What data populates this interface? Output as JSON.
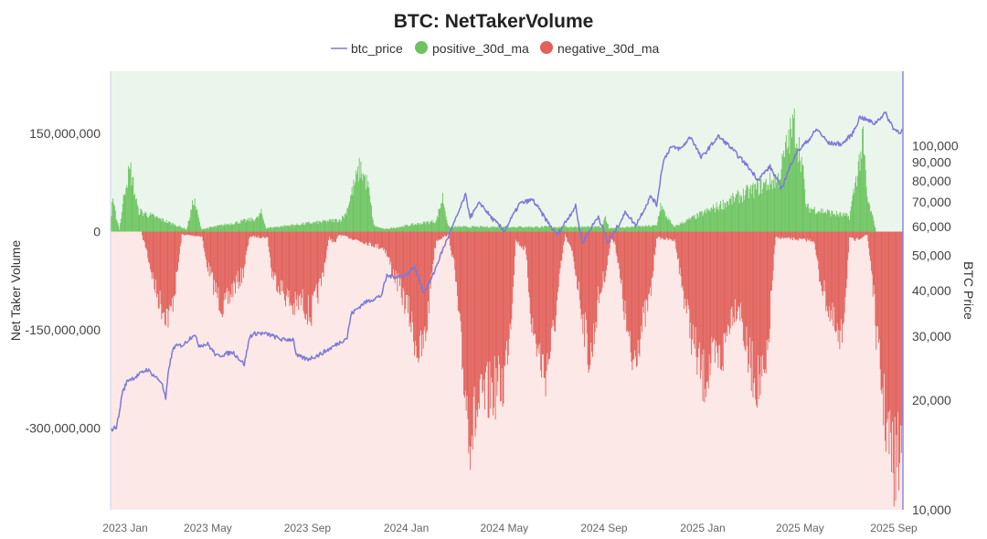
{
  "chart_data": {
    "type": "bar",
    "title": "BTC: NetTakerVolume",
    "legend_position": "top-center",
    "legend": [
      {
        "name": "btc_price",
        "symbol": "line",
        "color": "#7b79d8"
      },
      {
        "name": "positive_30d_ma",
        "symbol": "circle",
        "color": "#6cc45f"
      },
      {
        "name": "negative_30d_ma",
        "symbol": "circle",
        "color": "#e1605a"
      }
    ],
    "colors": {
      "positive_band": "#eaf6ec",
      "negative_band": "#fce8e6",
      "positive_bar": "#6cc45f",
      "negative_bar": "#e1605a",
      "price_line": "#7b79d8",
      "right_axis": "#8b89e0"
    },
    "xlabel": "",
    "x_ticks": [
      "2023 Jan",
      "2023 May",
      "2023 Sep",
      "2024 Jan",
      "2024 May",
      "2024 Sep",
      "2025 Jan",
      "2025 May",
      "2025 Sep"
    ],
    "x_range": [
      "2023-01-01",
      "2025-09-05"
    ],
    "y_left": {
      "label": "Net Taker Volume",
      "range": [
        -425000000,
        245000000
      ],
      "ticks": [
        150000000,
        0,
        -150000000,
        -300000000
      ],
      "tick_labels": [
        "150,000,000",
        "0",
        "-150,000,000",
        "-300,000,000"
      ]
    },
    "y_right": {
      "label": "BTC Price",
      "scale": "log",
      "range": [
        10000,
        160000
      ],
      "ticks": [
        10000,
        20000,
        30000,
        40000,
        50000,
        60000,
        70000,
        80000,
        90000,
        100000
      ],
      "tick_labels": [
        "10,000",
        "20,000",
        "30,000",
        "40,000",
        "50,000",
        "60,000",
        "70,000",
        "80,000",
        "90,000",
        "100,000"
      ]
    },
    "series": [
      {
        "name": "btc_price",
        "axis": "right",
        "points": [
          [
            "2023-01-01",
            16500
          ],
          [
            "2023-01-08",
            16900
          ],
          [
            "2023-01-12",
            18500
          ],
          [
            "2023-01-15",
            20800
          ],
          [
            "2023-01-22",
            22700
          ],
          [
            "2023-01-31",
            23100
          ],
          [
            "2023-02-15",
            24300
          ],
          [
            "2023-02-25",
            23200
          ],
          [
            "2023-03-05",
            22400
          ],
          [
            "2023-03-10",
            20100
          ],
          [
            "2023-03-14",
            24600
          ],
          [
            "2023-03-20",
            28000
          ],
          [
            "2023-04-01",
            28400
          ],
          [
            "2023-04-14",
            30400
          ],
          [
            "2023-04-20",
            28300
          ],
          [
            "2023-05-01",
            28500
          ],
          [
            "2023-05-12",
            26400
          ],
          [
            "2023-06-01",
            27100
          ],
          [
            "2023-06-15",
            25100
          ],
          [
            "2023-06-22",
            30000
          ],
          [
            "2023-07-01",
            30600
          ],
          [
            "2023-07-15",
            30300
          ],
          [
            "2023-08-01",
            29300
          ],
          [
            "2023-08-15",
            29400
          ],
          [
            "2023-08-18",
            26500
          ],
          [
            "2023-09-01",
            25900
          ],
          [
            "2023-09-15",
            26600
          ],
          [
            "2023-10-01",
            27900
          ],
          [
            "2023-10-20",
            29700
          ],
          [
            "2023-10-25",
            34500
          ],
          [
            "2023-11-10",
            37000
          ],
          [
            "2023-12-01",
            38700
          ],
          [
            "2023-12-08",
            43900
          ],
          [
            "2023-12-20",
            43600
          ],
          [
            "2024-01-01",
            44200
          ],
          [
            "2024-01-11",
            46500
          ],
          [
            "2024-01-23",
            39500
          ],
          [
            "2024-02-01",
            43000
          ],
          [
            "2024-02-15",
            51800
          ],
          [
            "2024-03-01",
            62000
          ],
          [
            "2024-03-14",
            73100
          ],
          [
            "2024-03-20",
            63700
          ],
          [
            "2024-04-01",
            69700
          ],
          [
            "2024-04-15",
            63400
          ],
          [
            "2024-05-01",
            58300
          ],
          [
            "2024-05-20",
            69300
          ],
          [
            "2024-06-05",
            71000
          ],
          [
            "2024-06-25",
            61000
          ],
          [
            "2024-07-05",
            56700
          ],
          [
            "2024-07-28",
            68200
          ],
          [
            "2024-08-05",
            54000
          ],
          [
            "2024-08-25",
            64000
          ],
          [
            "2024-09-06",
            53900
          ],
          [
            "2024-09-28",
            65800
          ],
          [
            "2024-10-10",
            60300
          ],
          [
            "2024-10-29",
            72700
          ],
          [
            "2024-11-05",
            68700
          ],
          [
            "2024-11-13",
            90400
          ],
          [
            "2024-11-22",
            98900
          ],
          [
            "2024-12-05",
            98000
          ],
          [
            "2024-12-17",
            106000
          ],
          [
            "2024-12-30",
            92500
          ],
          [
            "2025-01-20",
            106000
          ],
          [
            "2025-02-01",
            100600
          ],
          [
            "2025-02-25",
            88000
          ],
          [
            "2025-03-10",
            80700
          ],
          [
            "2025-03-25",
            87500
          ],
          [
            "2025-04-08",
            76300
          ],
          [
            "2025-04-25",
            94700
          ],
          [
            "2025-05-12",
            104000
          ],
          [
            "2025-05-22",
            111000
          ],
          [
            "2025-06-05",
            101500
          ],
          [
            "2025-06-22",
            101000
          ],
          [
            "2025-07-05",
            108000
          ],
          [
            "2025-07-14",
            120000
          ],
          [
            "2025-08-01",
            115000
          ],
          [
            "2025-08-14",
            123000
          ],
          [
            "2025-08-25",
            111000
          ],
          [
            "2025-09-01",
            109000
          ],
          [
            "2025-09-05",
            110500
          ]
        ]
      },
      {
        "name": "positive_30d_ma",
        "axis": "left",
        "peak_points": [
          [
            "2023-01-01",
            0
          ],
          [
            "2023-01-03",
            52000000
          ],
          [
            "2023-01-12",
            4000000
          ],
          [
            "2023-01-20",
            85000000
          ],
          [
            "2023-01-26",
            102000000
          ],
          [
            "2023-02-04",
            35000000
          ],
          [
            "2023-04-05",
            4000000
          ],
          [
            "2023-04-14",
            55000000
          ],
          [
            "2023-04-23",
            4000000
          ],
          [
            "2023-07-01",
            22000000
          ],
          [
            "2023-07-06",
            32000000
          ],
          [
            "2023-07-12",
            6000000
          ],
          [
            "2023-10-12",
            20000000
          ],
          [
            "2023-10-18",
            30000000
          ],
          [
            "2023-10-25",
            62000000
          ],
          [
            "2023-11-05",
            108000000
          ],
          [
            "2023-11-15",
            75000000
          ],
          [
            "2023-11-22",
            10000000
          ],
          [
            "2023-12-05",
            4000000
          ],
          [
            "2024-02-07",
            18000000
          ],
          [
            "2024-02-15",
            58000000
          ],
          [
            "2024-02-22",
            8000000
          ],
          [
            "2024-08-30",
            8000000
          ],
          [
            "2024-09-03",
            25000000
          ],
          [
            "2024-09-07",
            6000000
          ],
          [
            "2024-11-05",
            10000000
          ],
          [
            "2024-11-10",
            45000000
          ],
          [
            "2024-11-15",
            30000000
          ],
          [
            "2024-11-26",
            8000000
          ],
          [
            "2025-04-05",
            90000000
          ],
          [
            "2025-04-16",
            150000000
          ],
          [
            "2025-04-24",
            180000000
          ],
          [
            "2025-05-03",
            120000000
          ],
          [
            "2025-05-09",
            40000000
          ],
          [
            "2025-07-01",
            25000000
          ],
          [
            "2025-07-12",
            110000000
          ],
          [
            "2025-07-18",
            150000000
          ],
          [
            "2025-07-23",
            55000000
          ],
          [
            "2025-08-03",
            3000000
          ]
        ]
      },
      {
        "name": "negative_30d_ma",
        "axis": "left",
        "trough_points": [
          [
            "2023-02-08",
            -4000000
          ],
          [
            "2023-02-14",
            -28000000
          ],
          [
            "2023-02-25",
            -95000000
          ],
          [
            "2023-03-05",
            -125000000
          ],
          [
            "2023-03-15",
            -145000000
          ],
          [
            "2023-03-24",
            -75000000
          ],
          [
            "2023-03-30",
            -5000000
          ],
          [
            "2023-04-24",
            -8000000
          ],
          [
            "2023-04-28",
            -45000000
          ],
          [
            "2023-05-12",
            -105000000
          ],
          [
            "2023-05-22",
            -130000000
          ],
          [
            "2023-06-01",
            -95000000
          ],
          [
            "2023-06-13",
            -72000000
          ],
          [
            "2023-06-22",
            -8000000
          ],
          [
            "2023-07-14",
            -10000000
          ],
          [
            "2023-07-19",
            -70000000
          ],
          [
            "2023-07-31",
            -95000000
          ],
          [
            "2023-08-15",
            -128000000
          ],
          [
            "2023-08-25",
            -115000000
          ],
          [
            "2023-09-05",
            -140000000
          ],
          [
            "2023-09-18",
            -85000000
          ],
          [
            "2023-09-28",
            -10000000
          ],
          [
            "2023-10-05",
            -20000000
          ],
          [
            "2023-10-10",
            -5000000
          ],
          [
            "2023-12-05",
            -28000000
          ],
          [
            "2023-12-18",
            -75000000
          ],
          [
            "2024-01-03",
            -130000000
          ],
          [
            "2024-01-10",
            -170000000
          ],
          [
            "2024-01-18",
            -210000000
          ],
          [
            "2024-01-25",
            -175000000
          ],
          [
            "2024-02-02",
            -60000000
          ],
          [
            "2024-02-07",
            -15000000
          ],
          [
            "2024-02-22",
            -5000000
          ],
          [
            "2024-03-01",
            -65000000
          ],
          [
            "2024-03-10",
            -220000000
          ],
          [
            "2024-03-20",
            -335000000
          ],
          [
            "2024-04-01",
            -295000000
          ],
          [
            "2024-04-15",
            -265000000
          ],
          [
            "2024-04-30",
            -255000000
          ],
          [
            "2024-05-10",
            -130000000
          ],
          [
            "2024-05-15",
            -15000000
          ],
          [
            "2024-05-27",
            -30000000
          ],
          [
            "2024-06-05",
            -165000000
          ],
          [
            "2024-06-20",
            -240000000
          ],
          [
            "2024-07-01",
            -170000000
          ],
          [
            "2024-07-10",
            -60000000
          ],
          [
            "2024-07-15",
            -5000000
          ],
          [
            "2024-07-25",
            -40000000
          ],
          [
            "2024-08-05",
            -135000000
          ],
          [
            "2024-08-15",
            -220000000
          ],
          [
            "2024-08-25",
            -115000000
          ],
          [
            "2024-09-05",
            -55000000
          ],
          [
            "2024-09-10",
            -10000000
          ],
          [
            "2024-09-15",
            -20000000
          ],
          [
            "2024-09-28",
            -150000000
          ],
          [
            "2024-10-05",
            -225000000
          ],
          [
            "2024-10-15",
            -175000000
          ],
          [
            "2024-10-28",
            -110000000
          ],
          [
            "2024-11-05",
            -10000000
          ],
          [
            "2024-11-28",
            -15000000
          ],
          [
            "2024-12-05",
            -80000000
          ],
          [
            "2024-12-20",
            -185000000
          ],
          [
            "2025-01-01",
            -250000000
          ],
          [
            "2025-01-10",
            -225000000
          ],
          [
            "2025-01-25",
            -210000000
          ],
          [
            "2025-02-05",
            -135000000
          ],
          [
            "2025-02-15",
            -120000000
          ],
          [
            "2025-02-25",
            -210000000
          ],
          [
            "2025-03-10",
            -255000000
          ],
          [
            "2025-03-20",
            -250000000
          ],
          [
            "2025-03-28",
            -80000000
          ],
          [
            "2025-04-01",
            -10000000
          ],
          [
            "2025-05-18",
            -15000000
          ],
          [
            "2025-05-25",
            -75000000
          ],
          [
            "2025-06-08",
            -140000000
          ],
          [
            "2025-06-20",
            -200000000
          ],
          [
            "2025-06-28",
            -70000000
          ],
          [
            "2025-07-01",
            -10000000
          ],
          [
            "2025-07-08",
            -15000000
          ],
          [
            "2025-07-23",
            -5000000
          ],
          [
            "2025-07-28",
            -60000000
          ],
          [
            "2025-08-05",
            -200000000
          ],
          [
            "2025-08-15",
            -320000000
          ],
          [
            "2025-08-24",
            -395000000
          ],
          [
            "2025-09-01",
            -370000000
          ],
          [
            "2025-09-05",
            -340000000
          ]
        ]
      }
    ]
  }
}
